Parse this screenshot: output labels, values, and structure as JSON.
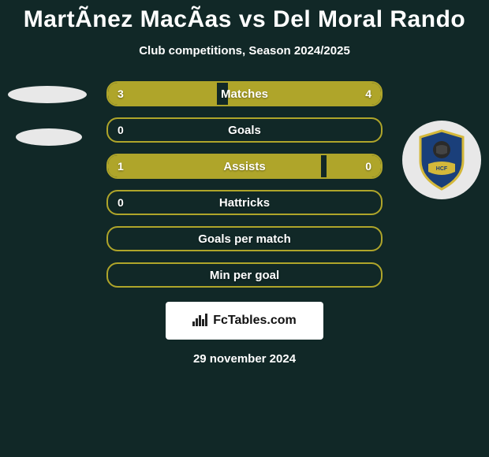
{
  "title": "MartÃnez MacÃas vs Del Moral Rando",
  "subtitle": "Club competitions, Season 2024/2025",
  "colors": {
    "background": "#112827",
    "accent": "#afa52a",
    "text": "#ffffff",
    "badge_bg": "#ffffff",
    "logo_bg": "#e8e8e8",
    "shield_blue": "#1a3f7a",
    "shield_gold": "#d4b83a"
  },
  "bars": [
    {
      "label": "Matches",
      "left_val": "3",
      "right_val": "4",
      "left_pct": 40,
      "right_pct": 56
    },
    {
      "label": "Goals",
      "left_val": "0",
      "right_val": "",
      "left_pct": 0,
      "right_pct": 0
    },
    {
      "label": "Assists",
      "left_val": "1",
      "right_val": "0",
      "left_pct": 78,
      "right_pct": 20
    },
    {
      "label": "Hattricks",
      "left_val": "0",
      "right_val": "",
      "left_pct": 0,
      "right_pct": 0
    },
    {
      "label": "Goals per match",
      "left_val": "",
      "right_val": "",
      "left_pct": 0,
      "right_pct": 0
    },
    {
      "label": "Min per goal",
      "left_val": "",
      "right_val": "",
      "left_pct": 0,
      "right_pct": 0
    }
  ],
  "footer_brand": "FcTables.com",
  "date": "29 november 2024"
}
